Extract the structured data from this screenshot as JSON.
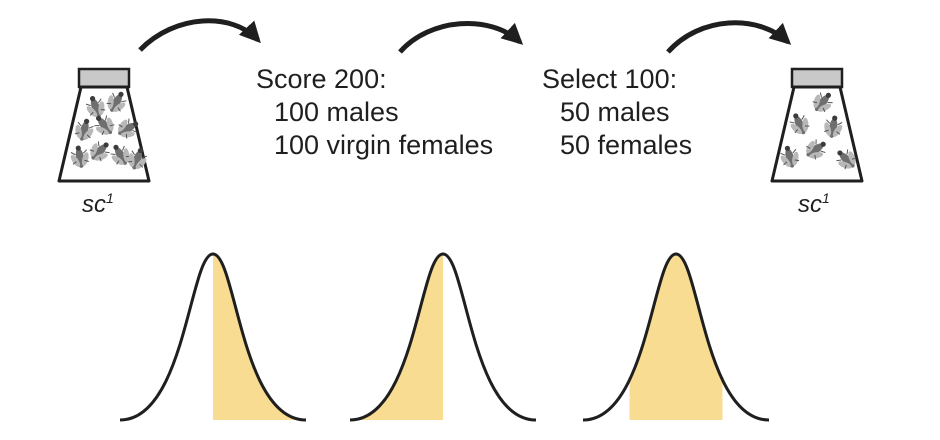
{
  "colors": {
    "ink": "#1f1f1f",
    "cap": "#c9c9c9",
    "shade": "#f8dc92",
    "fly": "#6f6f6f"
  },
  "icons": [
    "flask-icon",
    "fly-icon",
    "curved-arrow-icon"
  ],
  "flasks": [
    {
      "strain": "sc",
      "superscript": "1"
    },
    {
      "strain": "sc",
      "superscript": "1"
    }
  ],
  "steps": [
    {
      "title": "Score 200:",
      "lines": [
        "100 males",
        "100 virgin females"
      ]
    },
    {
      "title": "Select 100:",
      "lines": [
        "50 males",
        "50 females"
      ]
    }
  ],
  "distributions": [
    {
      "shaded_from": 0.5,
      "shaded_to": 1.0
    },
    {
      "shaded_from": 0.0,
      "shaded_to": 0.5
    },
    {
      "shaded_from": 0.25,
      "shaded_to": 0.75
    }
  ]
}
